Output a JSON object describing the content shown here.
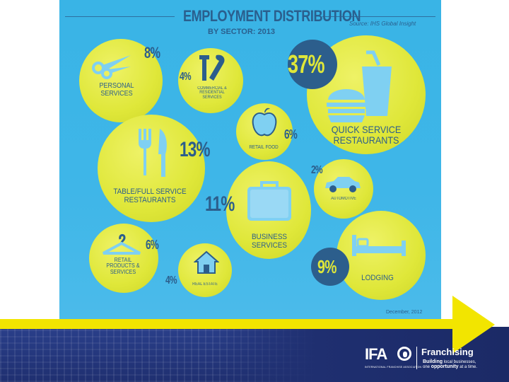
{
  "infographic": {
    "title": "EMPLOYMENT DISTRIBUTION",
    "subtitle": "BY SECTOR: 2013",
    "source": "Source: IHS Global Insight",
    "date": "December, 2012"
  },
  "sectors": {
    "personal": {
      "percent": "8%",
      "label_1": "PERSONAL",
      "label_2": "SERVICES"
    },
    "commercial": {
      "percent": "4%",
      "label_1": "COMMERCIAL &",
      "label_2": "RESIDENTIAL",
      "label_3": "SERVICES"
    },
    "quick": {
      "percent": "37%",
      "label_1": "QUICK SERVICE",
      "label_2": "RESTAURANTS"
    },
    "retail_food": {
      "percent": "6%",
      "label_1": "RETAIL FOOD"
    },
    "table": {
      "percent": "13%",
      "label_1": "TABLE/FULL SERVICE",
      "label_2": "RESTAURANTS"
    },
    "automotive": {
      "percent": "2%",
      "label_1": "AUTOMOTIVE"
    },
    "business": {
      "percent": "11%",
      "label_1": "BUSINESS",
      "label_2": "SERVICES"
    },
    "retail_products": {
      "percent": "6%",
      "label_1": "RETAIL",
      "label_2": "PRODUCTS &",
      "label_3": "SERVICES"
    },
    "real_estate": {
      "percent": "4%",
      "label_1": "REAL ESTATE"
    },
    "lodging": {
      "percent": "9%",
      "label_1": "LODGING"
    }
  },
  "footer": {
    "ifa_logo": "IFA",
    "ifa_subtitle": "INTERNATIONAL FRANCHISE ASSOCIATION",
    "franchising": "Franchising",
    "tag_strong_1": "Building",
    "tag_rest_1": "local businesses,",
    "tag_rest_2a": "one",
    "tag_strong_2": "opportunity",
    "tag_rest_2b": "at a time."
  },
  "colors": {
    "sky": "#3fb6e8",
    "circle": "#dfe739",
    "navy": "#2c5e8c",
    "stripe": "#f2e500",
    "band": "#1f2f70"
  },
  "icons": [
    "scissors-icon",
    "tools-icon",
    "soda-cup-icon",
    "burger-icon",
    "apple-icon",
    "fork-icon",
    "knife-icon",
    "car-icon",
    "briefcase-icon",
    "hanger-icon",
    "house-icon",
    "bed-icon",
    "globe-icon"
  ]
}
